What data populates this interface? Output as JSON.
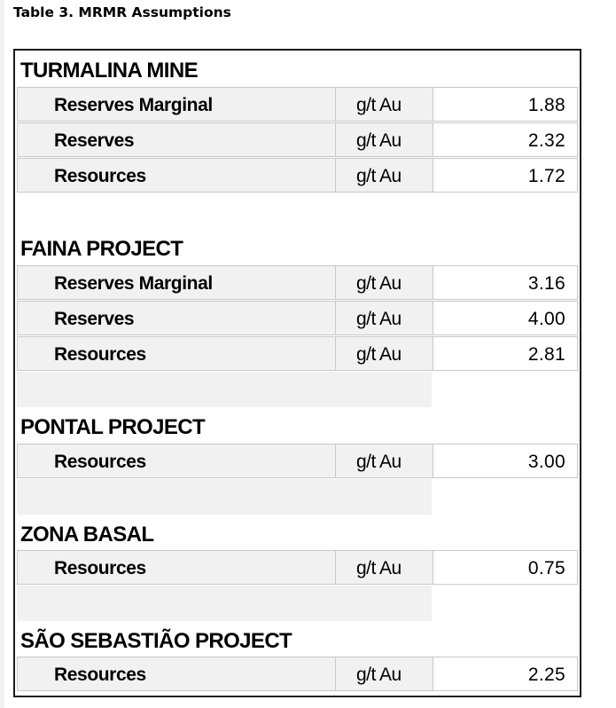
{
  "caption": "Table 3. MRMR Assumptions",
  "sections": [
    {
      "title": "TURMALINA MINE",
      "rows": [
        {
          "label": "Reserves Marginal",
          "unit": "g/t Au",
          "value": "1.88"
        },
        {
          "label": "Reserves",
          "unit": "g/t Au",
          "value": "2.32"
        },
        {
          "label": "Resources",
          "unit": "g/t Au",
          "value": "1.72"
        }
      ]
    },
    {
      "title": "FAINA PROJECT",
      "rows": [
        {
          "label": "Reserves Marginal",
          "unit": "g/t Au",
          "value": "3.16"
        },
        {
          "label": "Reserves",
          "unit": "g/t Au",
          "value": "4.00"
        },
        {
          "label": "Resources",
          "unit": "g/t Au",
          "value": "2.81"
        }
      ]
    },
    {
      "title": "PONTAL PROJECT",
      "rows": [
        {
          "label": "Resources",
          "unit": "g/t Au",
          "value": "3.00"
        }
      ]
    },
    {
      "title": "ZONA BASAL",
      "rows": [
        {
          "label": "Resources",
          "unit": "g/t Au",
          "value": "0.75"
        }
      ]
    },
    {
      "title": "SÃO SEBASTIÃO PROJECT",
      "rows": [
        {
          "label": "Resources",
          "unit": "g/t Au",
          "value": "2.25"
        }
      ]
    }
  ]
}
